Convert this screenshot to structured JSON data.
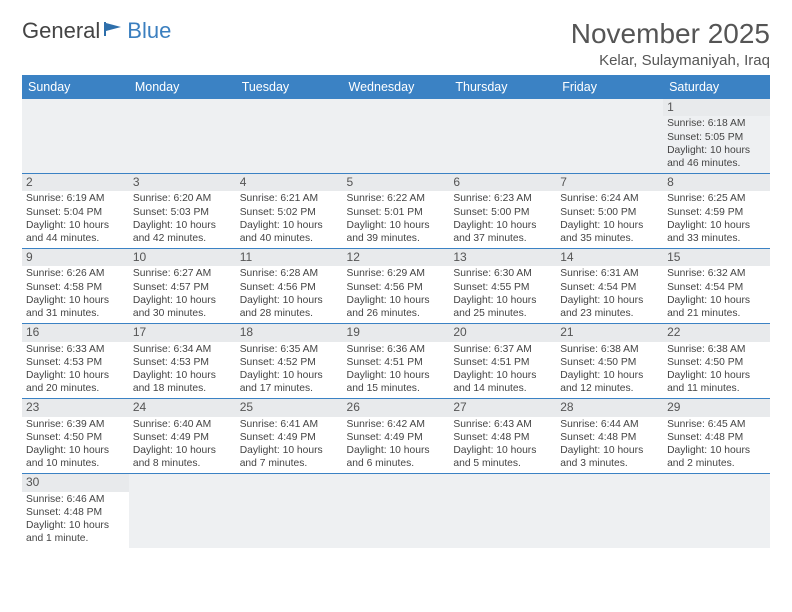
{
  "brand": {
    "part1": "General",
    "part2": "Blue"
  },
  "title": "November 2025",
  "location": "Kelar, Sulaymaniyah, Iraq",
  "colors": {
    "header_bg": "#3b82c4",
    "header_fg": "#ffffff",
    "daynum_bg": "#e8eaec",
    "row_border": "#3b82c4",
    "brand_accent": "#3b7fbf"
  },
  "dayHeaders": [
    "Sunday",
    "Monday",
    "Tuesday",
    "Wednesday",
    "Thursday",
    "Friday",
    "Saturday"
  ],
  "weeks": [
    [
      null,
      null,
      null,
      null,
      null,
      null,
      {
        "n": "1",
        "sr": "6:18 AM",
        "ss": "5:05 PM",
        "dl": "10 hours and 46 minutes."
      }
    ],
    [
      {
        "n": "2",
        "sr": "6:19 AM",
        "ss": "5:04 PM",
        "dl": "10 hours and 44 minutes."
      },
      {
        "n": "3",
        "sr": "6:20 AM",
        "ss": "5:03 PM",
        "dl": "10 hours and 42 minutes."
      },
      {
        "n": "4",
        "sr": "6:21 AM",
        "ss": "5:02 PM",
        "dl": "10 hours and 40 minutes."
      },
      {
        "n": "5",
        "sr": "6:22 AM",
        "ss": "5:01 PM",
        "dl": "10 hours and 39 minutes."
      },
      {
        "n": "6",
        "sr": "6:23 AM",
        "ss": "5:00 PM",
        "dl": "10 hours and 37 minutes."
      },
      {
        "n": "7",
        "sr": "6:24 AM",
        "ss": "5:00 PM",
        "dl": "10 hours and 35 minutes."
      },
      {
        "n": "8",
        "sr": "6:25 AM",
        "ss": "4:59 PM",
        "dl": "10 hours and 33 minutes."
      }
    ],
    [
      {
        "n": "9",
        "sr": "6:26 AM",
        "ss": "4:58 PM",
        "dl": "10 hours and 31 minutes."
      },
      {
        "n": "10",
        "sr": "6:27 AM",
        "ss": "4:57 PM",
        "dl": "10 hours and 30 minutes."
      },
      {
        "n": "11",
        "sr": "6:28 AM",
        "ss": "4:56 PM",
        "dl": "10 hours and 28 minutes."
      },
      {
        "n": "12",
        "sr": "6:29 AM",
        "ss": "4:56 PM",
        "dl": "10 hours and 26 minutes."
      },
      {
        "n": "13",
        "sr": "6:30 AM",
        "ss": "4:55 PM",
        "dl": "10 hours and 25 minutes."
      },
      {
        "n": "14",
        "sr": "6:31 AM",
        "ss": "4:54 PM",
        "dl": "10 hours and 23 minutes."
      },
      {
        "n": "15",
        "sr": "6:32 AM",
        "ss": "4:54 PM",
        "dl": "10 hours and 21 minutes."
      }
    ],
    [
      {
        "n": "16",
        "sr": "6:33 AM",
        "ss": "4:53 PM",
        "dl": "10 hours and 20 minutes."
      },
      {
        "n": "17",
        "sr": "6:34 AM",
        "ss": "4:53 PM",
        "dl": "10 hours and 18 minutes."
      },
      {
        "n": "18",
        "sr": "6:35 AM",
        "ss": "4:52 PM",
        "dl": "10 hours and 17 minutes."
      },
      {
        "n": "19",
        "sr": "6:36 AM",
        "ss": "4:51 PM",
        "dl": "10 hours and 15 minutes."
      },
      {
        "n": "20",
        "sr": "6:37 AM",
        "ss": "4:51 PM",
        "dl": "10 hours and 14 minutes."
      },
      {
        "n": "21",
        "sr": "6:38 AM",
        "ss": "4:50 PM",
        "dl": "10 hours and 12 minutes."
      },
      {
        "n": "22",
        "sr": "6:38 AM",
        "ss": "4:50 PM",
        "dl": "10 hours and 11 minutes."
      }
    ],
    [
      {
        "n": "23",
        "sr": "6:39 AM",
        "ss": "4:50 PM",
        "dl": "10 hours and 10 minutes."
      },
      {
        "n": "24",
        "sr": "6:40 AM",
        "ss": "4:49 PM",
        "dl": "10 hours and 8 minutes."
      },
      {
        "n": "25",
        "sr": "6:41 AM",
        "ss": "4:49 PM",
        "dl": "10 hours and 7 minutes."
      },
      {
        "n": "26",
        "sr": "6:42 AM",
        "ss": "4:49 PM",
        "dl": "10 hours and 6 minutes."
      },
      {
        "n": "27",
        "sr": "6:43 AM",
        "ss": "4:48 PM",
        "dl": "10 hours and 5 minutes."
      },
      {
        "n": "28",
        "sr": "6:44 AM",
        "ss": "4:48 PM",
        "dl": "10 hours and 3 minutes."
      },
      {
        "n": "29",
        "sr": "6:45 AM",
        "ss": "4:48 PM",
        "dl": "10 hours and 2 minutes."
      }
    ],
    [
      {
        "n": "30",
        "sr": "6:46 AM",
        "ss": "4:48 PM",
        "dl": "10 hours and 1 minute."
      },
      null,
      null,
      null,
      null,
      null,
      null
    ]
  ],
  "labels": {
    "sunrise": "Sunrise:",
    "sunset": "Sunset:",
    "daylight": "Daylight:"
  }
}
